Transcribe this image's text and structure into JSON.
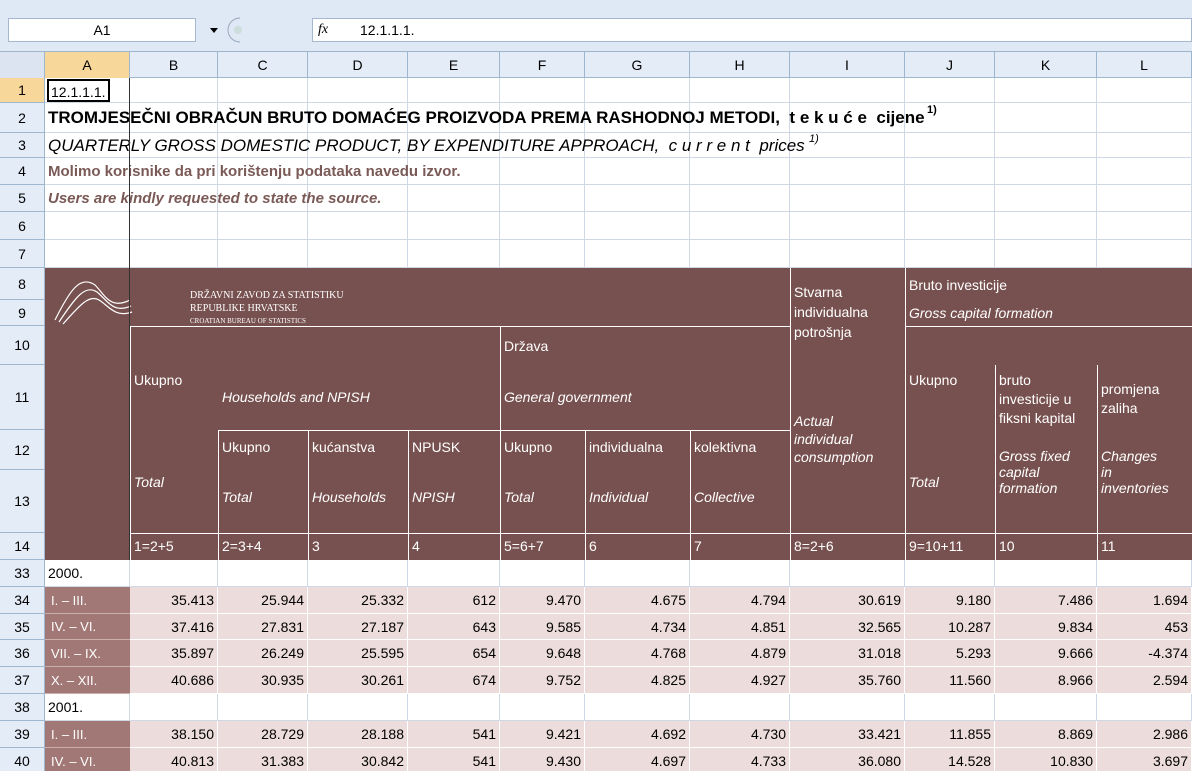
{
  "formula_bar": {
    "name_box": "A1",
    "fx": "fx",
    "formula": "12.1.1.1."
  },
  "columns": [
    "A",
    "B",
    "C",
    "D",
    "E",
    "F",
    "G",
    "H",
    "I",
    "J",
    "K",
    "L"
  ],
  "row_numbers": [
    "1",
    "2",
    "3",
    "4",
    "5",
    "6",
    "7",
    "8",
    "9",
    "10",
    "11",
    "12",
    "13",
    "14",
    "33",
    "34",
    "35",
    "36",
    "37",
    "38",
    "39",
    "40"
  ],
  "cells": {
    "a1": "12.1.1.1.",
    "title_hr": "TROMJESEČNI OBRAČUN BRUTO DOMAĆEG PROIZVODA PREMA RASHODNOJ METODI,  t e k u ć e  cijene",
    "title_hr_note": "1)",
    "title_en": "QUARTERLY GROSS DOMESTIC PRODUCT, BY EXPENDITURE APPROACH,  c u r r e n t  prices",
    "title_en_note": "1)",
    "note_hr": "Molimo korisnike da pri korištenju podataka navedu izvor.",
    "note_en": "Users are kindly requested to state the source."
  },
  "logo": {
    "line1": "DRŽAVNI ZAVOD ZA STATISTIKU",
    "line2": "REPUBLIKE HRVATSKE",
    "line3": "CROATIAN BUREAU OF STATISTICS"
  },
  "header": {
    "b_hr": "Ukupno",
    "b_en": "Total",
    "households_en": "Households and NPISH",
    "gov_hr": "Država",
    "gov_en": "General government",
    "sub_hr": [
      "Ukupno",
      "kućanstva",
      "NPUSK",
      "Ukupno",
      "individualna",
      "kolektivna"
    ],
    "sub_en": [
      "Total",
      "Households",
      "NPISH",
      "Total",
      "Individual",
      "Collective"
    ],
    "i_hr": [
      "Stvarna",
      "individualna",
      "potrošnja"
    ],
    "i_en": [
      "Actual",
      "individual",
      "consumption"
    ],
    "gcf_hr": "Bruto investicije",
    "gcf_en": "Gross capital formation",
    "j_hr": "Ukupno",
    "j_en": "Total",
    "k_hr": [
      "bruto",
      "investicije u",
      "fiksni kapital"
    ],
    "k_en": [
      "Gross fixed",
      "capital",
      "formation"
    ],
    "l_hr": [
      "promjena",
      "zaliha"
    ],
    "l_en": [
      "Changes",
      "in",
      "inventories"
    ],
    "formulas": [
      "1=2+5",
      "2=3+4",
      "3",
      "4",
      "5=6+7",
      "6",
      "7",
      "8=2+6",
      "9=10+11",
      "10",
      "11"
    ]
  },
  "data_rows": [
    {
      "label": "2000."
    },
    {
      "label": "I. – III.",
      "values": [
        "35.413",
        "25.944",
        "25.332",
        "612",
        "9.470",
        "4.675",
        "4.794",
        "30.619",
        "9.180",
        "7.486",
        "1.694"
      ]
    },
    {
      "label": "IV. – VI.",
      "values": [
        "37.416",
        "27.831",
        "27.187",
        "643",
        "9.585",
        "4.734",
        "4.851",
        "32.565",
        "10.287",
        "9.834",
        "453"
      ]
    },
    {
      "label": "VII. – IX.",
      "values": [
        "35.897",
        "26.249",
        "25.595",
        "654",
        "9.648",
        "4.768",
        "4.879",
        "31.018",
        "5.293",
        "9.666",
        "-4.374"
      ]
    },
    {
      "label": "X. – XII.",
      "values": [
        "40.686",
        "30.935",
        "30.261",
        "674",
        "9.752",
        "4.825",
        "4.927",
        "35.760",
        "11.560",
        "8.966",
        "2.594"
      ]
    },
    {
      "label": "2001."
    },
    {
      "label": "I. – III.",
      "values": [
        "38.150",
        "28.729",
        "28.188",
        "541",
        "9.421",
        "4.692",
        "4.730",
        "33.421",
        "11.855",
        "8.869",
        "2.986"
      ]
    },
    {
      "label": "IV. – VI.",
      "values": [
        "40.813",
        "31.383",
        "30.842",
        "541",
        "9.430",
        "4.697",
        "4.733",
        "36.080",
        "14.528",
        "10.830",
        "3.697"
      ]
    }
  ]
}
